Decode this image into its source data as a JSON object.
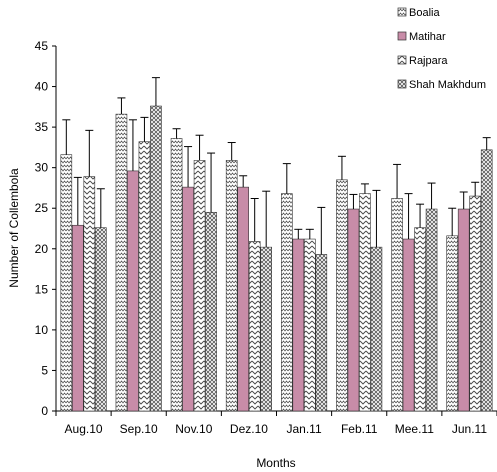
{
  "chart_data": {
    "type": "bar",
    "title": "",
    "xlabel": "Months",
    "ylabel": "Number of Collembola",
    "categories": [
      "Aug.10",
      "Sep.10",
      "Nov.10",
      "Dez.10",
      "Jan.11",
      "Feb.11",
      "Mee.11",
      "Jun.11"
    ],
    "ylim": [
      0,
      45
    ],
    "yticks": [
      0,
      5,
      10,
      15,
      20,
      25,
      30,
      35,
      40,
      45
    ],
    "grid": false,
    "legend_position": "top-right",
    "error_bars": true,
    "series": [
      {
        "name": "Boalia",
        "pattern": "zigzag",
        "color": "#ffffff",
        "values": [
          31.6,
          36.6,
          33.6,
          30.9,
          26.8,
          28.5,
          26.2,
          21.6
        ],
        "errors": [
          4.3,
          2.0,
          1.2,
          2.2,
          3.7,
          2.9,
          4.2,
          3.4
        ]
      },
      {
        "name": "Matihar",
        "pattern": "solid",
        "color": "#c88ca8",
        "values": [
          22.9,
          29.6,
          27.6,
          27.6,
          21.2,
          24.9,
          21.2,
          24.9
        ],
        "errors": [
          5.9,
          6.3,
          5.0,
          1.4,
          1.2,
          1.8,
          5.6,
          2.1
        ]
      },
      {
        "name": "Rajpara",
        "pattern": "chevron",
        "color": "#ffffff",
        "values": [
          28.9,
          33.2,
          30.9,
          20.9,
          21.2,
          26.8,
          22.6,
          26.5
        ],
        "errors": [
          5.7,
          3.0,
          3.1,
          5.3,
          1.2,
          1.2,
          2.9,
          1.7
        ]
      },
      {
        "name": "Shah Makhdum",
        "pattern": "crosshatch",
        "color": "#ffffff",
        "values": [
          22.6,
          37.6,
          24.5,
          20.2,
          19.3,
          20.2,
          24.9,
          32.2
        ],
        "errors": [
          4.8,
          3.5,
          7.3,
          6.9,
          5.8,
          7.0,
          3.2,
          1.5
        ]
      }
    ]
  }
}
